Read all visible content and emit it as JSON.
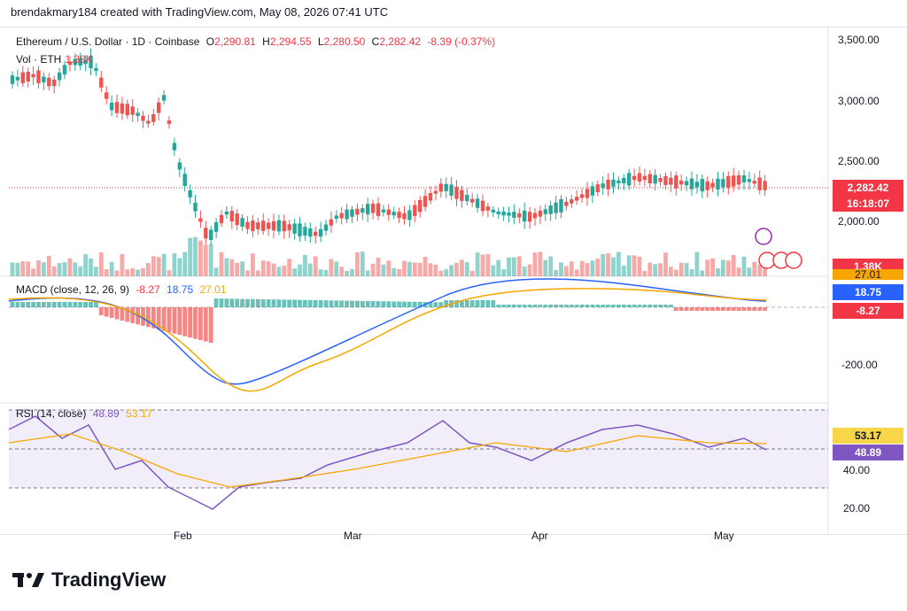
{
  "header": {
    "attribution": "brendakmary184 created with TradingView.com, May 08, 2026 07:41 UTC"
  },
  "main_chart": {
    "title": "Ethereum / U.S. Dollar · 1D · Coinbase",
    "open_label": "O",
    "open": "2,290.81",
    "high_label": "H",
    "high": "2,294.55",
    "low_label": "L",
    "low": "2,280.50",
    "close_label": "C",
    "close": "2,282.42",
    "change": "-8.39 (-0.37%)",
    "volume_label": "Vol · ETH",
    "volume": "1.38K",
    "price_axis": [
      "3,500.00",
      "3,000.00",
      "2,500.00",
      "2,000.00"
    ],
    "last_price_tag": "2,282.42",
    "countdown_tag": "16:18:07",
    "volume_tag": "1.38K"
  },
  "macd": {
    "label": "MACD (close, 12, 26, 9)",
    "hist": "-8.27",
    "macd": "18.75",
    "signal": "27.01",
    "axis": [
      "-200.00"
    ],
    "tags": {
      "signal": "27.01",
      "macd": "18.75",
      "hist": "-8.27"
    }
  },
  "rsi": {
    "label": "RSI (14, close)",
    "rsi": "48.89",
    "ma": "53.17",
    "axis": [
      "40.00",
      "20.00"
    ],
    "tags": {
      "ma": "53.17",
      "rsi": "48.89"
    }
  },
  "x_axis": [
    "Feb",
    "Mar",
    "Apr",
    "May"
  ],
  "brand": {
    "name": "TradingView"
  },
  "colors": {
    "up": "#26a69a",
    "down": "#ef5350",
    "macd": "#2962ff",
    "signal": "#f7a600",
    "rsi": "#7e57c2"
  }
}
